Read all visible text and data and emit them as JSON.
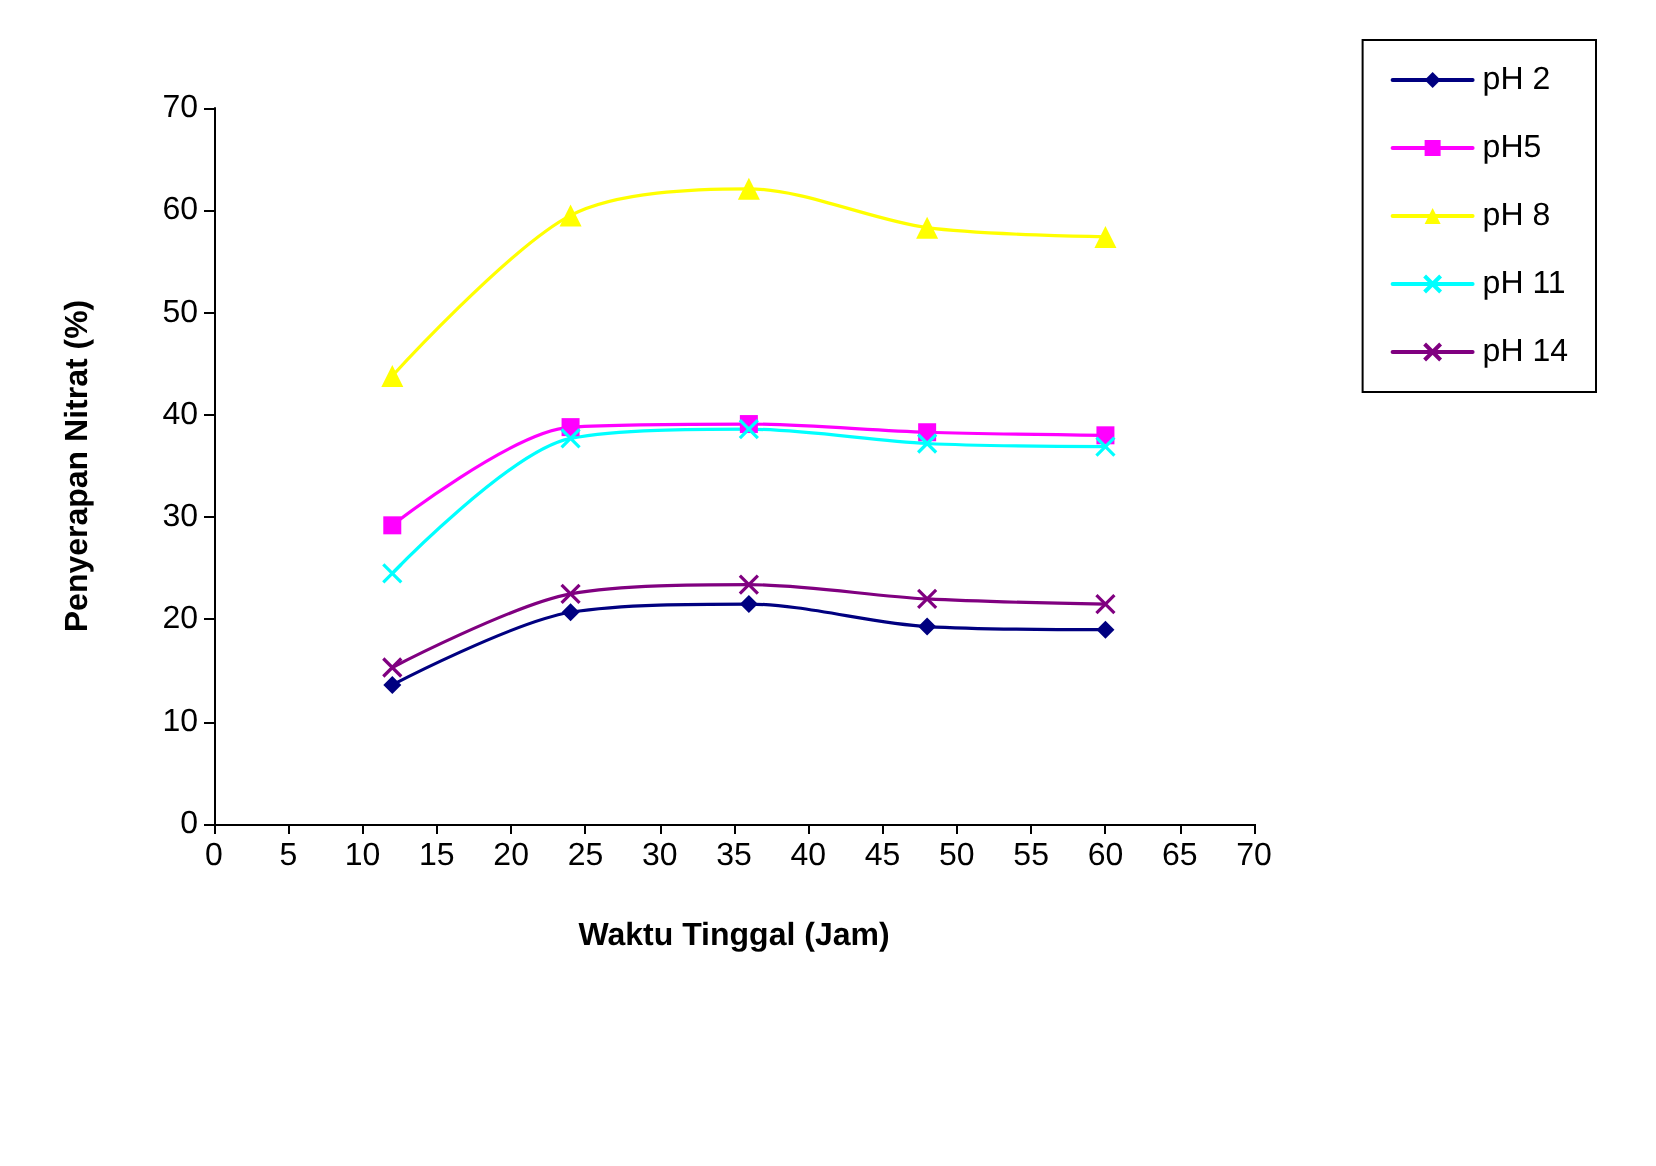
{
  "chart_data": {
    "type": "line",
    "xlabel": "Waktu Tinggal (Jam)",
    "ylabel": "Penyerapan Nitrat (%)",
    "x": [
      12,
      24,
      36,
      48,
      60
    ],
    "series": [
      {
        "name": "pH 2",
        "color": "#000080",
        "marker": "diamond",
        "values": [
          13.6,
          20.7,
          21.5,
          19.3,
          19.0
        ]
      },
      {
        "name": "pH5",
        "color": "#ff00ff",
        "marker": "square",
        "values": [
          29.2,
          38.8,
          39.1,
          38.3,
          38.0
        ]
      },
      {
        "name": "pH 8",
        "color": "#ffff00",
        "marker": "triangle",
        "values": [
          43.8,
          59.5,
          62.1,
          58.3,
          57.4
        ]
      },
      {
        "name": "pH 11",
        "color": "#00ffff",
        "marker": "cross",
        "values": [
          24.5,
          37.7,
          38.6,
          37.2,
          36.9
        ]
      },
      {
        "name": "pH 14",
        "color": "#800080",
        "marker": "cross",
        "values": [
          15.3,
          22.5,
          23.4,
          22.0,
          21.5
        ]
      }
    ],
    "xlim": [
      0,
      70
    ],
    "xticks": [
      0,
      5,
      10,
      15,
      20,
      25,
      30,
      35,
      40,
      45,
      50,
      55,
      60,
      65,
      70
    ],
    "ylim": [
      0,
      70
    ],
    "yticks": [
      0,
      10,
      20,
      30,
      40,
      50,
      60,
      70
    ],
    "grid": false,
    "legend": "top right",
    "line_style": "solid"
  }
}
